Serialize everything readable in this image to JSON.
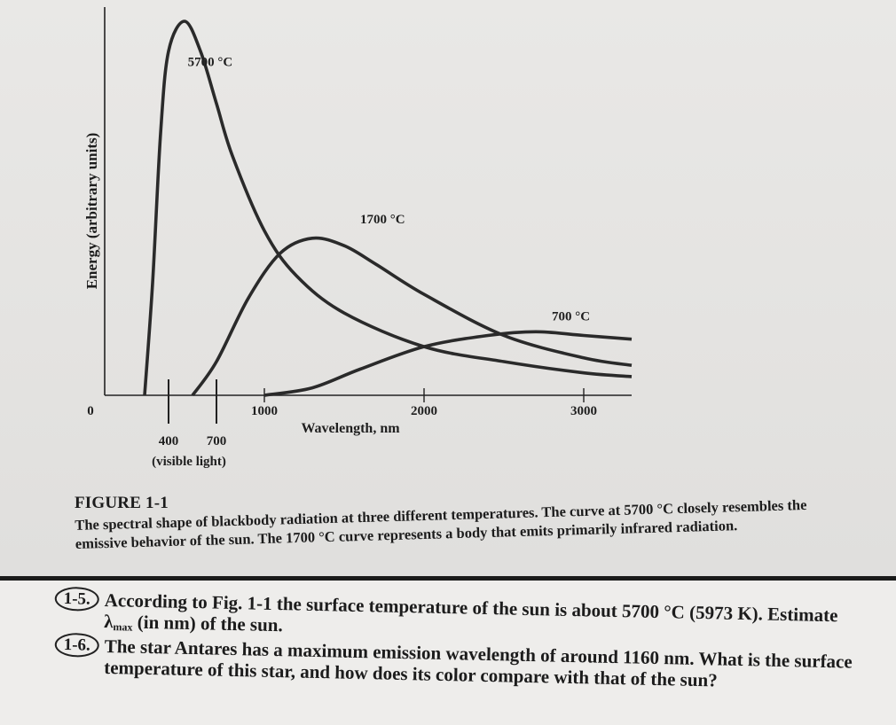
{
  "chart_data": {
    "type": "line",
    "title": "",
    "xlabel": "Wavelength, nm",
    "ylabel": "Energy (arbitrary units)",
    "xlim": [
      0,
      3300
    ],
    "ylim": [
      0,
      100
    ],
    "x_ticks": [
      {
        "value": 0,
        "label": "0"
      },
      {
        "value": 1000,
        "label": "1000"
      },
      {
        "value": 2000,
        "label": "2000"
      },
      {
        "value": 3000,
        "label": "3000"
      }
    ],
    "visible_marks": [
      {
        "value": 400,
        "label": "400"
      },
      {
        "value": 700,
        "label": "700"
      }
    ],
    "visible_note": "(visible light)",
    "series": [
      {
        "name": "5700 °C",
        "x": [
          250,
          300,
          350,
          400,
          500,
          600,
          700,
          800,
          1000,
          1200,
          1500,
          2000,
          2500,
          3000,
          3300
        ],
        "y": [
          0,
          30,
          70,
          92,
          100,
          92,
          78,
          64,
          44,
          32,
          22,
          13,
          9,
          6,
          5
        ]
      },
      {
        "name": "1700 °C",
        "x": [
          550,
          700,
          900,
          1100,
          1300,
          1500,
          1700,
          2000,
          2500,
          3000,
          3300
        ],
        "y": [
          0,
          9,
          26,
          38,
          42,
          40,
          35,
          27,
          16,
          10,
          8
        ]
      },
      {
        "name": "700 °C",
        "x": [
          1000,
          1300,
          1600,
          2000,
          2400,
          2700,
          3000,
          3300
        ],
        "y": [
          0,
          2,
          7,
          13,
          16,
          17,
          16,
          15
        ]
      }
    ]
  },
  "figure": {
    "label": "FIGURE 1-1",
    "caption": "The spectral shape of blackbody radiation at three different temperatures. The curve at 5700 °C closely resembles the emissive behavior of the sun. The 1700 °C curve represents a body that emits primarily infrared radiation."
  },
  "exercises": [
    {
      "number": "1-5.",
      "text_before": "According to Fig. 1-1 the surface temperature of the sun is about 5700 °C (5973 K). Estimate λ",
      "subscript": "max",
      "text_after": " (in nm) of the sun."
    },
    {
      "number": "1-6.",
      "text_before": "The star Antares has a maximum emission wavelength of around 1160 nm. What is the surface temperature of this star, and how does its color compare with that of the sun?",
      "subscript": "",
      "text_after": ""
    }
  ]
}
